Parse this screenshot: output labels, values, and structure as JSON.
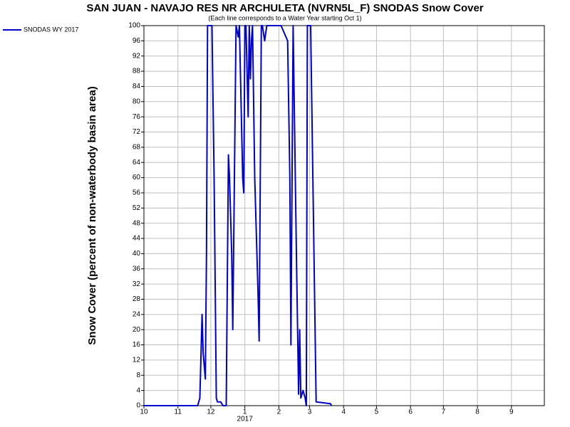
{
  "chart_data": {
    "type": "line",
    "title": "SAN JUAN - NAVAJO RES NR ARCHULETA (NVRN5L_F) SNODAS Snow Cover",
    "subtitle": "(Each line corresponds to a Water Year starting Oct 1)",
    "ylabel": "Snow Cover (percent of non-waterbody basin area)",
    "year_label": {
      "text": "2017",
      "x": 92
    },
    "xlim": [
      0,
      365
    ],
    "xticks": [
      {
        "value": 0,
        "label": "10"
      },
      {
        "value": 31,
        "label": "11"
      },
      {
        "value": 61,
        "label": "12"
      },
      {
        "value": 92,
        "label": "1"
      },
      {
        "value": 123,
        "label": "2"
      },
      {
        "value": 151,
        "label": "3"
      },
      {
        "value": 182,
        "label": "4"
      },
      {
        "value": 212,
        "label": "5"
      },
      {
        "value": 243,
        "label": "6"
      },
      {
        "value": 273,
        "label": "7"
      },
      {
        "value": 304,
        "label": "8"
      },
      {
        "value": 335,
        "label": "9"
      }
    ],
    "ylim": [
      0,
      100
    ],
    "yticks": [
      0,
      4,
      8,
      12,
      16,
      20,
      24,
      28,
      32,
      36,
      40,
      44,
      48,
      52,
      56,
      60,
      64,
      68,
      72,
      76,
      80,
      84,
      88,
      92,
      96,
      100
    ],
    "grid": true,
    "legend": "top-left",
    "x": [
      0,
      49,
      51,
      53,
      54,
      56,
      57,
      58,
      62,
      64,
      66,
      67,
      70,
      72,
      75,
      77,
      78,
      80,
      81,
      84,
      86,
      87,
      90,
      91,
      92,
      93,
      95,
      96,
      97,
      98,
      99,
      101,
      104,
      105,
      107,
      108,
      110,
      112,
      125,
      131,
      133,
      134,
      136,
      139,
      141,
      142,
      143,
      145,
      147,
      148,
      149,
      152,
      154,
      157,
      170,
      171
    ],
    "series": [
      {
        "name": "SNODAS WY 2017",
        "color": "#0000cc",
        "values": [
          0,
          0,
          2,
          24,
          14,
          7,
          40,
          100,
          100,
          60,
          2,
          1,
          1,
          0,
          0,
          66,
          60,
          40,
          20,
          100,
          97,
          100,
          60,
          56,
          100,
          100,
          76,
          100,
          86,
          96,
          100,
          60,
          30,
          17,
          100,
          100,
          96,
          100,
          100,
          96,
          60,
          16,
          100,
          40,
          3,
          20,
          2,
          4,
          2,
          0,
          100,
          100,
          60,
          1,
          0.5,
          0
        ]
      }
    ]
  }
}
